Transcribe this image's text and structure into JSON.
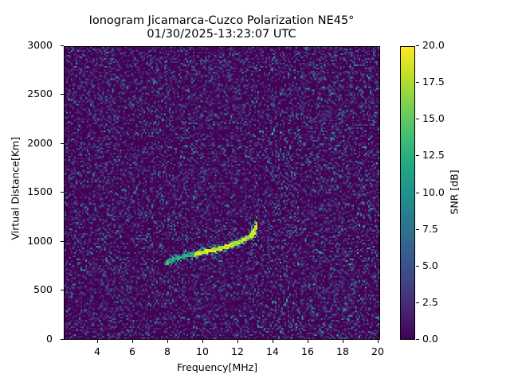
{
  "chart_data": {
    "type": "heatmap",
    "title": "Ionogram Jicamarca-Cuzco Polarization NE45°",
    "subtitle": "01/30/2025-13:23:07 UTC",
    "xlabel": "Frequency[MHz]",
    "ylabel": "Virtual Distance[Km]",
    "xlim": [
      2.1,
      20.15
    ],
    "ylim": [
      0,
      3000
    ],
    "xticks": [
      4,
      6,
      8,
      10,
      12,
      14,
      16,
      18,
      20
    ],
    "yticks": [
      0,
      500,
      1000,
      1500,
      2000,
      2500,
      3000
    ],
    "grid": false,
    "colormap": "viridis",
    "colorbar": {
      "label": "SNR [dB]",
      "range": [
        0.0,
        20.0
      ],
      "ticks": [
        "0.0",
        "2.5",
        "5.0",
        "7.5",
        "10.0",
        "12.5",
        "15.0",
        "17.5",
        "20.0"
      ]
    },
    "background": "noise ~0-5 dB across entire frequency/distance range",
    "trace": {
      "description": "F-layer oblique echo trace, high SNR (~15-20 dB)",
      "points": [
        {
          "freq": 7.9,
          "dist": 780
        },
        {
          "freq": 8.5,
          "dist": 830
        },
        {
          "freq": 9.0,
          "dist": 855
        },
        {
          "freq": 9.5,
          "dist": 870
        },
        {
          "freq": 10.0,
          "dist": 890
        },
        {
          "freq": 10.5,
          "dist": 910
        },
        {
          "freq": 11.0,
          "dist": 930
        },
        {
          "freq": 11.5,
          "dist": 955
        },
        {
          "freq": 12.0,
          "dist": 985
        },
        {
          "freq": 12.5,
          "dist": 1030
        },
        {
          "freq": 12.9,
          "dist": 1080
        },
        {
          "freq": 13.1,
          "dist": 1140
        },
        {
          "freq": 13.2,
          "dist": 1230
        }
      ]
    }
  },
  "labels": {
    "title": "Ionogram Jicamarca-Cuzco Polarization NE45°",
    "subtitle": "01/30/2025-13:23:07 UTC",
    "xlabel": "Frequency[MHz]",
    "ylabel": "Virtual Distance[Km]",
    "cbar_label": "SNR [dB]",
    "yt": [
      "0",
      "500",
      "1000",
      "1500",
      "2000",
      "2500",
      "3000"
    ],
    "xt": [
      "4",
      "6",
      "8",
      "10",
      "12",
      "14",
      "16",
      "18",
      "20"
    ],
    "ct": [
      "0.0",
      "2.5",
      "5.0",
      "7.5",
      "10.0",
      "12.5",
      "15.0",
      "17.5",
      "20.0"
    ]
  }
}
